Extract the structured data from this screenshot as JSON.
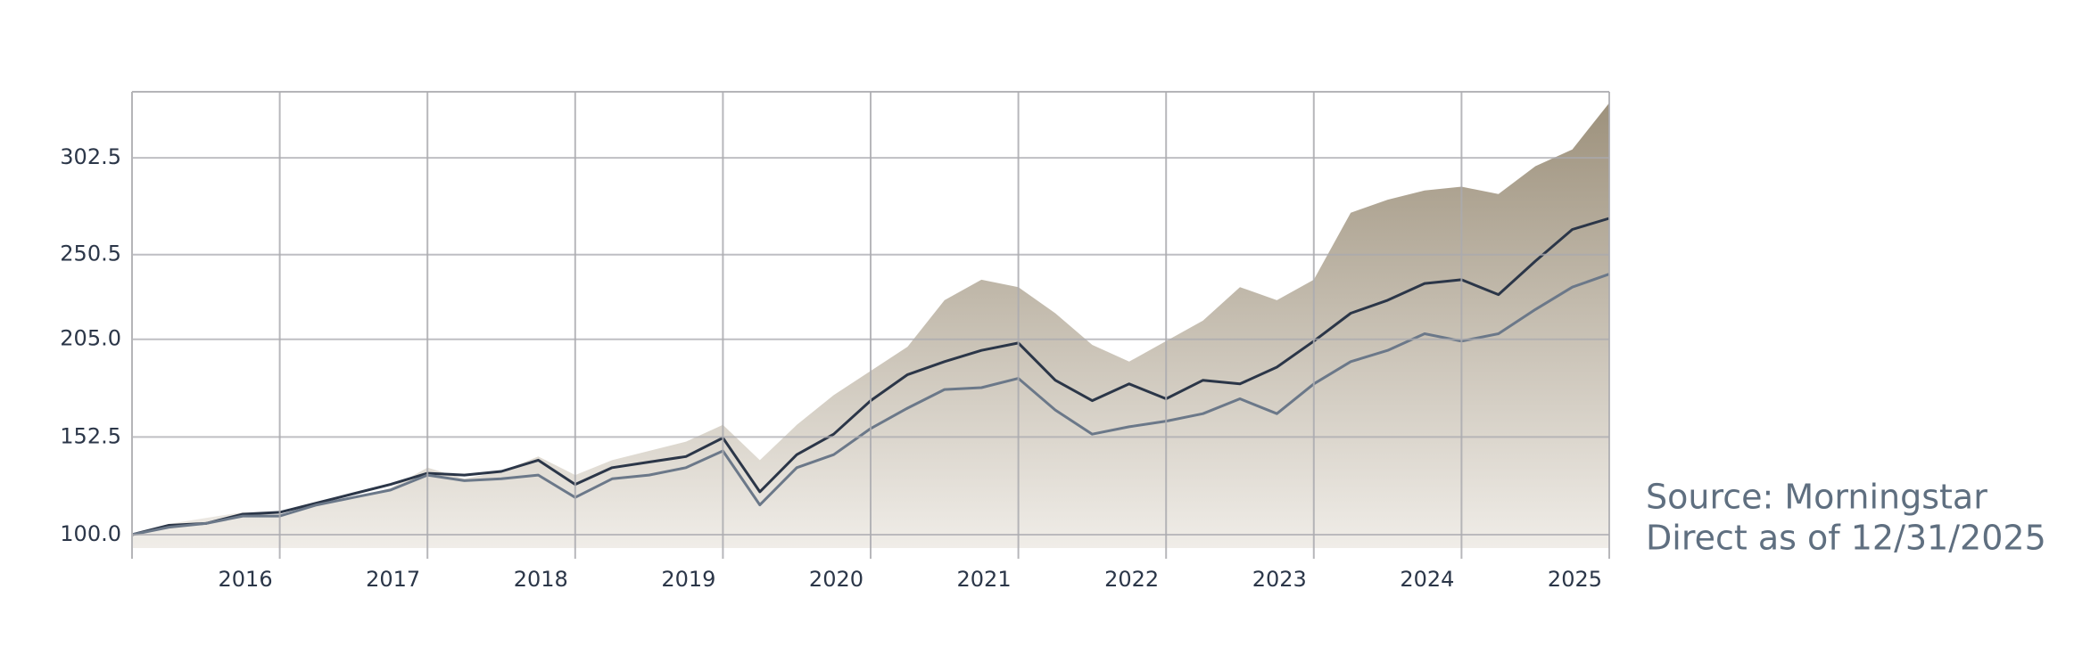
{
  "chart_data": {
    "type": "area-line",
    "x": [
      2015,
      2015.25,
      2015.5,
      2015.75,
      2016,
      2016.25,
      2016.5,
      2016.75,
      2017,
      2017.25,
      2017.5,
      2017.75,
      2018,
      2018.25,
      2018.5,
      2018.75,
      2019,
      2019.25,
      2019.5,
      2019.75,
      2020,
      2020.25,
      2020.5,
      2020.75,
      2021,
      2021.25,
      2021.5,
      2021.75,
      2022,
      2022.25,
      2022.5,
      2022.75,
      2023,
      2023.25,
      2023.5,
      2023.75,
      2024,
      2024.25,
      2024.5,
      2024.75,
      2025
    ],
    "series": [
      {
        "kind": "area",
        "color": "#a09480",
        "values": [
          100,
          105.8,
          109,
          112,
          111,
          116,
          120,
          125,
          136,
          130,
          134,
          142,
          132,
          140,
          145,
          150,
          159,
          140,
          159,
          175,
          188,
          201,
          226,
          237,
          233,
          219,
          202,
          193,
          204,
          215,
          233,
          226,
          237,
          273,
          280,
          285,
          287,
          283,
          298,
          307,
          332
        ]
      },
      {
        "kind": "line",
        "color": "#2b3648",
        "values": [
          100,
          105,
          106,
          111,
          112,
          117,
          122,
          127,
          133,
          132,
          134,
          140,
          127,
          136,
          139,
          142,
          152,
          123,
          143,
          154,
          172,
          186,
          193,
          199,
          203,
          183,
          172,
          181,
          173,
          183,
          181,
          190,
          204,
          219,
          226,
          235,
          237,
          229,
          247,
          264,
          270
        ]
      },
      {
        "kind": "line",
        "color": "#6b7889",
        "values": [
          100,
          104,
          106,
          110,
          110,
          116,
          120,
          124,
          132,
          129,
          130,
          132,
          120,
          130,
          132,
          136,
          145,
          116,
          136,
          143,
          157,
          168,
          178,
          179,
          184,
          167,
          154,
          158,
          161,
          165,
          173,
          165,
          181,
          193,
          199,
          208,
          204,
          208,
          221,
          233,
          240
        ]
      }
    ],
    "xlim": [
      2015,
      2025
    ],
    "xticks": [
      2016,
      2017,
      2018,
      2019,
      2020,
      2021,
      2022,
      2023,
      2024,
      2025
    ],
    "ylim": [
      92.8,
      338
    ],
    "yticks": [
      {
        "value": 100,
        "label": "100.0"
      },
      152.5,
      {
        "value": 205,
        "label": "205.0"
      },
      250.5,
      302.5
    ],
    "grid": true,
    "annotations": [
      "Source: Morningstar",
      "Direct as of 12/31/2025"
    ]
  }
}
